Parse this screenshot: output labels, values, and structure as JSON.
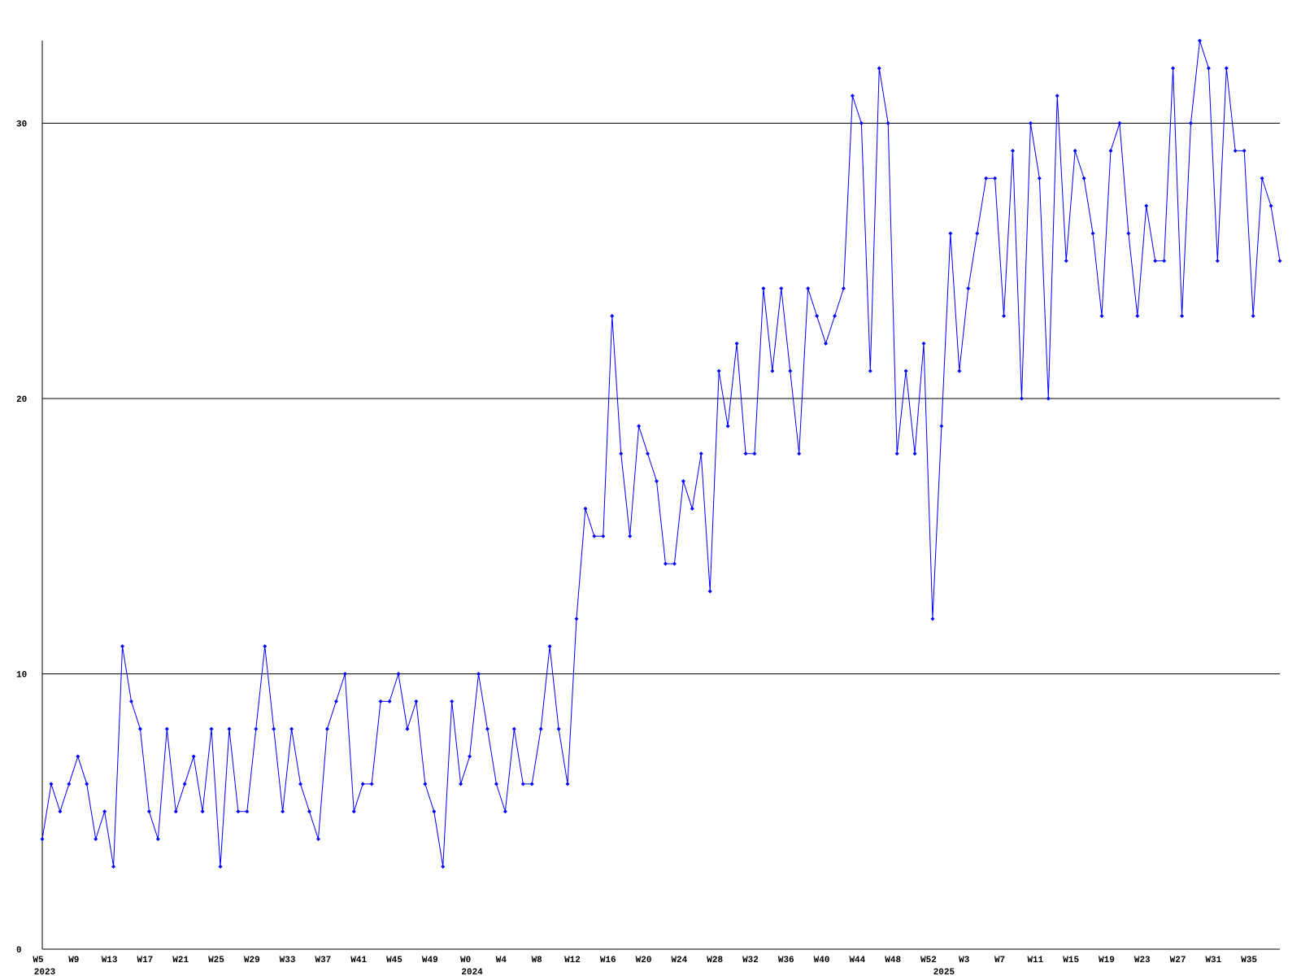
{
  "chart_data": {
    "type": "line",
    "categories": [
      "W5",
      null,
      null,
      null,
      "W9",
      null,
      null,
      null,
      "W13",
      null,
      null,
      null,
      "W17",
      null,
      null,
      null,
      "W21",
      null,
      null,
      null,
      "W25",
      null,
      null,
      null,
      "W29",
      null,
      null,
      null,
      "W33",
      null,
      null,
      null,
      "W37",
      null,
      null,
      null,
      "W41",
      null,
      null,
      null,
      "W45",
      null,
      null,
      null,
      "W49",
      null,
      null,
      null,
      "W0",
      null,
      null,
      null,
      "W4",
      null,
      null,
      null,
      "W8",
      null,
      null,
      null,
      "W12",
      null,
      null,
      null,
      "W16",
      null,
      null,
      null,
      "W20",
      null,
      null,
      null,
      "W24",
      null,
      null,
      null,
      "W28",
      null,
      null,
      null,
      "W32",
      null,
      null,
      null,
      "W36",
      null,
      null,
      null,
      "W40",
      null,
      null,
      null,
      "W44",
      null,
      null,
      null,
      "W48",
      null,
      null,
      null,
      "W52",
      null,
      null,
      null,
      "W3",
      null,
      null,
      null,
      "W7",
      null,
      null,
      null,
      "W11",
      null,
      null,
      null,
      "W15",
      null,
      null,
      null,
      "W19",
      null,
      null,
      null,
      "W23",
      null,
      null,
      null,
      "W27",
      null,
      null,
      null,
      "W31",
      null,
      null,
      null,
      "W35",
      null,
      null,
      null
    ],
    "year_labels": [
      "2023",
      null,
      null,
      null,
      null,
      null,
      null,
      null,
      null,
      null,
      null,
      null,
      null,
      null,
      null,
      null,
      null,
      null,
      null,
      null,
      null,
      null,
      null,
      null,
      null,
      null,
      null,
      null,
      null,
      null,
      null,
      null,
      null,
      null,
      null,
      null,
      null,
      null,
      null,
      null,
      null,
      null,
      null,
      null,
      null,
      null,
      null,
      null,
      "2024",
      null,
      null,
      null,
      null,
      null,
      null,
      null,
      null,
      null,
      null,
      null,
      null,
      null,
      null,
      null,
      null,
      null,
      null,
      null,
      null,
      null,
      null,
      null,
      null,
      null,
      null,
      null,
      null,
      null,
      null,
      null,
      null,
      null,
      null,
      null,
      null,
      null,
      null,
      null,
      null,
      null,
      null,
      null,
      null,
      null,
      null,
      null,
      null,
      null,
      null,
      null,
      null,
      "2025",
      null,
      null,
      null,
      null,
      null,
      null,
      null,
      null,
      null,
      null,
      null,
      null,
      null,
      null,
      null,
      null,
      null,
      null,
      null,
      null,
      null,
      null,
      null,
      null,
      null,
      null,
      null,
      null,
      null,
      null,
      null,
      null,
      null,
      null,
      null,
      null,
      null,
      null
    ],
    "series": [
      {
        "color": "#0000ff",
        "values": [
          4,
          6,
          5,
          6,
          7,
          6,
          4,
          5,
          3,
          11,
          9,
          8,
          5,
          4,
          8,
          5,
          6,
          7,
          5,
          8,
          3,
          8,
          5,
          5,
          8,
          11,
          8,
          5,
          8,
          6,
          5,
          4,
          8,
          9,
          10,
          5,
          6,
          6,
          9,
          9,
          10,
          8,
          9,
          6,
          5,
          3,
          9,
          6,
          7,
          10,
          8,
          6,
          5,
          8,
          6,
          6,
          8,
          11,
          8,
          6,
          12,
          16,
          15,
          15,
          23,
          18,
          15,
          19,
          18,
          17,
          14,
          14,
          17,
          16,
          18,
          13,
          21,
          19,
          22,
          18,
          18,
          24,
          21,
          24,
          21,
          18,
          24,
          23,
          22,
          23,
          24,
          31,
          30,
          21,
          32,
          30,
          18,
          21,
          18,
          22,
          12,
          19,
          26,
          21,
          24,
          26,
          28,
          28,
          23,
          29,
          20,
          30,
          28,
          20,
          31,
          25,
          29,
          28,
          26,
          23,
          29,
          30,
          26,
          23,
          27,
          25,
          25,
          32,
          23,
          30,
          33,
          32,
          25,
          32,
          29,
          29,
          23,
          28,
          27,
          25
        ]
      }
    ],
    "ylim": [
      0,
      33
    ],
    "yticks": [
      0,
      10,
      20,
      30
    ],
    "grid": true,
    "grid_color": "#000000"
  }
}
